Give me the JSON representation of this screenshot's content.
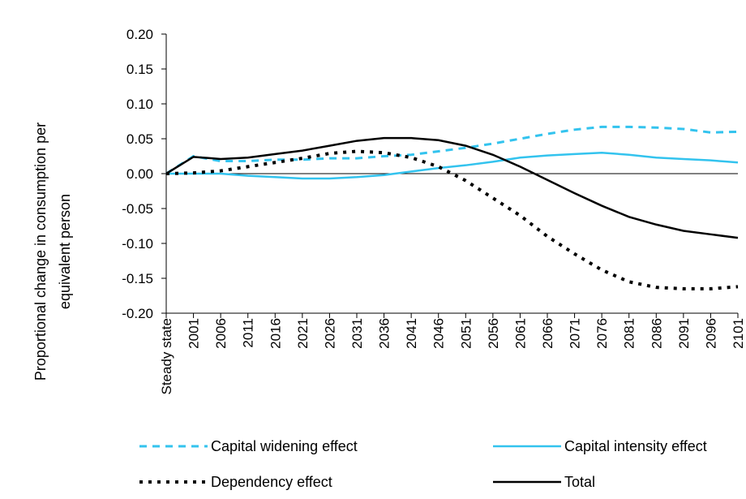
{
  "chart_data": {
    "type": "line",
    "y_label": "Proportional change in consumption per equivalent person",
    "categories": [
      "Steady state",
      "2001",
      "2006",
      "2011",
      "2016",
      "2021",
      "2026",
      "2031",
      "2036",
      "2041",
      "2046",
      "2051",
      "2056",
      "2061",
      "2066",
      "2071",
      "2076",
      "2081",
      "2086",
      "2091",
      "2096",
      "2101"
    ],
    "ylim": [
      -0.2,
      0.2
    ],
    "yticks": [
      {
        "value": -0.2,
        "label": "-0.20"
      },
      {
        "value": -0.15,
        "label": "-0.15"
      },
      {
        "value": -0.1,
        "label": "-0.10"
      },
      {
        "value": -0.05,
        "label": "-0.05"
      },
      {
        "value": 0,
        "label": "0.00"
      },
      {
        "value": 0.05,
        "label": "0.05"
      },
      {
        "value": 0.1,
        "label": "0.10"
      },
      {
        "value": 0.15,
        "label": "0.15"
      },
      {
        "value": 0.2,
        "label": "0.20"
      }
    ],
    "grid": false,
    "series": [
      {
        "name": "Capital widening effect",
        "color": "#33c3ee",
        "style": "dashed",
        "values": [
          0,
          0.025,
          0.018,
          0.018,
          0.02,
          0.02,
          0.022,
          0.022,
          0.025,
          0.027,
          0.032,
          0.037,
          0.043,
          0.05,
          0.057,
          0.063,
          0.067,
          0.067,
          0.066,
          0.064,
          0.059,
          0.06
        ]
      },
      {
        "name": "Capital intensity effect",
        "color": "#33c3ee",
        "style": "solid",
        "values": [
          0,
          0,
          0,
          -0.003,
          -0.005,
          -0.007,
          -0.007,
          -0.005,
          -0.002,
          0.003,
          0.008,
          0.012,
          0.017,
          0.023,
          0.026,
          0.028,
          0.03,
          0.027,
          0.023,
          0.021,
          0.019,
          0.016
        ]
      },
      {
        "name": "Dependency effect",
        "color": "#000000",
        "style": "dotted",
        "values": [
          0,
          0.001,
          0.004,
          0.01,
          0.016,
          0.022,
          0.029,
          0.032,
          0.03,
          0.023,
          0.01,
          -0.01,
          -0.035,
          -0.06,
          -0.09,
          -0.115,
          -0.138,
          -0.155,
          -0.163,
          -0.165,
          -0.165,
          -0.162
        ]
      },
      {
        "name": "Total",
        "color": "#000000",
        "style": "solid",
        "values": [
          0,
          0.024,
          0.021,
          0.023,
          0.028,
          0.033,
          0.04,
          0.047,
          0.051,
          0.051,
          0.048,
          0.04,
          0.027,
          0.01,
          -0.009,
          -0.028,
          -0.046,
          -0.062,
          -0.073,
          -0.082,
          -0.087,
          -0.092
        ]
      }
    ]
  }
}
